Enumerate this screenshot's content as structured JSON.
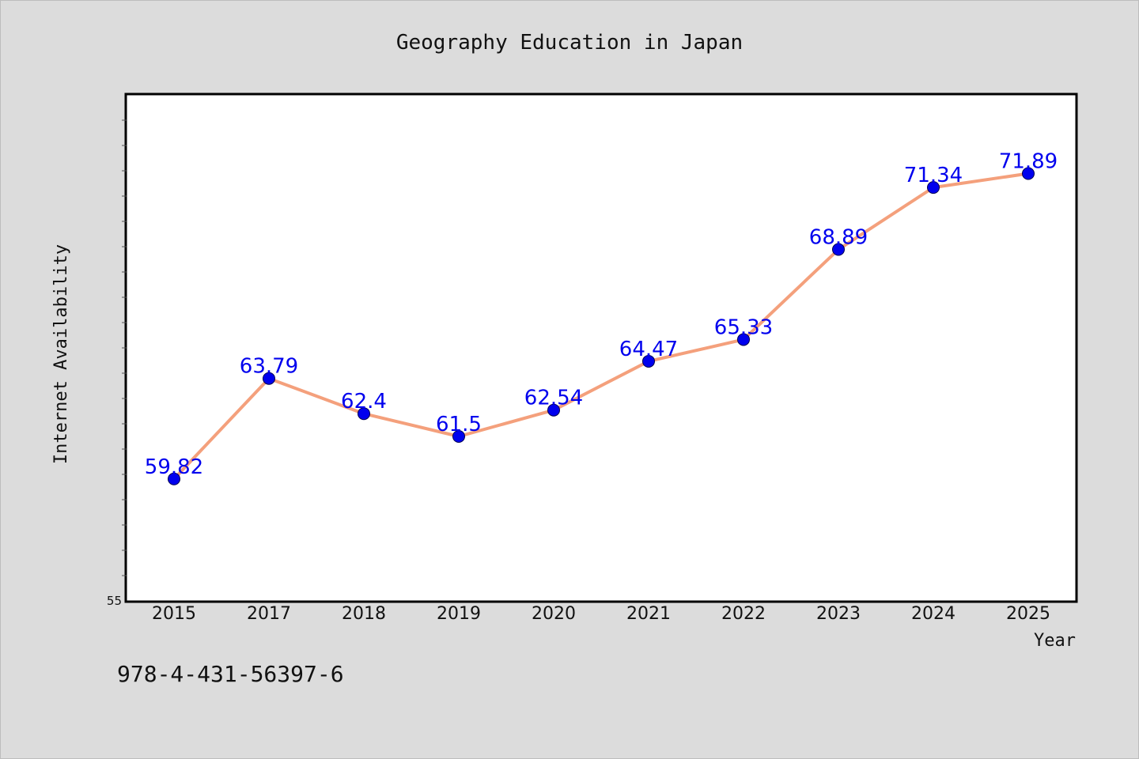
{
  "chart_data": {
    "type": "line",
    "title": "Geography Education in Japan",
    "xlabel": "Year",
    "ylabel": "Internet Availability",
    "categories": [
      "2015",
      "2017",
      "2018",
      "2019",
      "2020",
      "2021",
      "2022",
      "2023",
      "2024",
      "2025"
    ],
    "series": [
      {
        "values": [
          59.82,
          63.79,
          62.4,
          61.5,
          62.54,
          64.47,
          65.33,
          68.89,
          71.34,
          71.89
        ],
        "labels": [
          "59.82",
          "63.79",
          "62.4",
          "61.5",
          "62.54",
          "64.47",
          "65.33",
          "68.89",
          "71.34",
          "71.89"
        ]
      }
    ],
    "ylim": [
      55,
      75
    ],
    "yticks_labeled": [
      "55"
    ],
    "grid": false,
    "line_color": "#f4a07c",
    "marker_color": "#0000ee",
    "label_color": "#0000ee"
  },
  "footer": {
    "isbn": "978-4-431-56397-6"
  }
}
